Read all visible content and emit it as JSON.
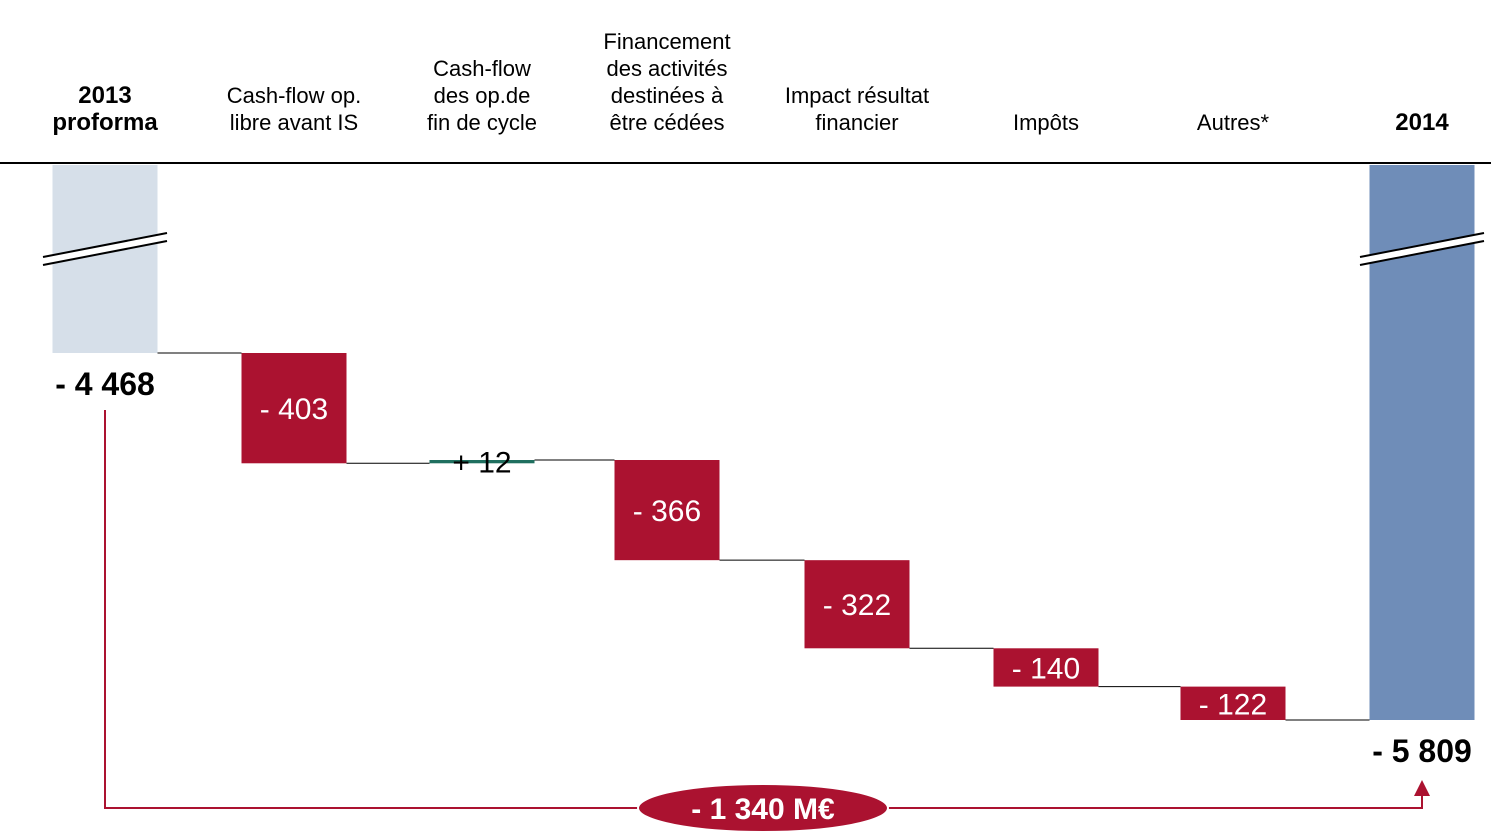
{
  "chart_data": {
    "type": "waterfall",
    "categories": [
      "2013\nproforma",
      "Cash-flow op.\nlibre avant IS",
      "Cash-flow\ndes op.de\nfin de cycle",
      "Financement\ndes activités\ndestinées à\nêtre cédées",
      "Impact résultat\nfinancier",
      "Impôts",
      "Autres*",
      "2014"
    ],
    "measures": [
      "total",
      "relative",
      "relative",
      "relative",
      "relative",
      "relative",
      "relative",
      "total"
    ],
    "values": [
      -4468,
      -403,
      12,
      -366,
      -322,
      -140,
      -122,
      -5809
    ],
    "value_labels": [
      "- 4 468",
      "- 403",
      "+ 12",
      "- 366",
      "- 322",
      "- 140",
      "- 122",
      "- 5 809"
    ],
    "colors": [
      "#d6dfe9",
      "#ab1230",
      "#1f6f5f",
      "#ab1230",
      "#ab1230",
      "#ab1230",
      "#ab1230",
      "#6f8db8"
    ],
    "annotation": "- 1 340 M€",
    "annotation_color": "#ab1230"
  }
}
